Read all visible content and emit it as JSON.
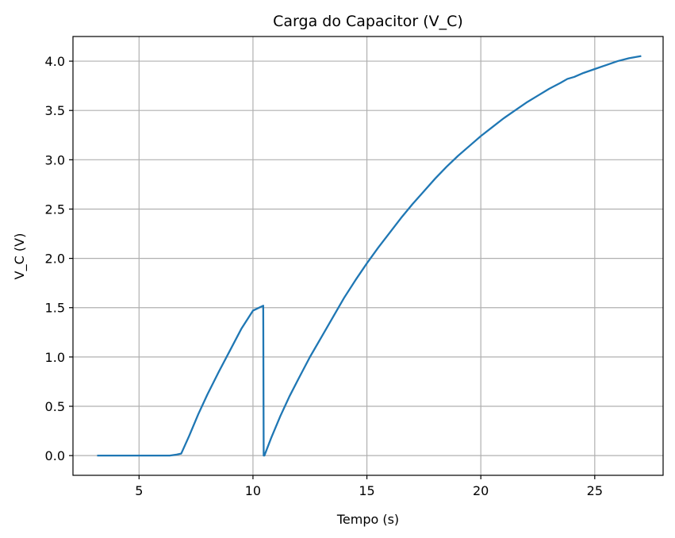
{
  "chart_data": {
    "type": "line",
    "title": "Carga do Capacitor (V_C)",
    "xlabel": "Tempo (s)",
    "ylabel": "V_C (V)",
    "xlim": [
      2.1,
      28.0
    ],
    "ylim": [
      -0.2,
      4.25
    ],
    "x_ticks": [
      5,
      10,
      15,
      20,
      25
    ],
    "x_tick_labels": [
      "5",
      "10",
      "15",
      "20",
      "25"
    ],
    "y_ticks": [
      0.0,
      0.5,
      1.0,
      1.5,
      2.0,
      2.5,
      3.0,
      3.5,
      4.0
    ],
    "y_tick_labels": [
      "0.0",
      "0.5",
      "1.0",
      "1.5",
      "2.0",
      "2.5",
      "3.0",
      "3.5",
      "4.0"
    ],
    "grid": true,
    "line_color": "#1f77b4",
    "series": [
      {
        "x": [
          3.2,
          4.0,
          5.0,
          6.0,
          6.35,
          6.65,
          6.85,
          7.2,
          7.6,
          8.0,
          8.5,
          9.0,
          9.5,
          10.0,
          10.45,
          10.47,
          10.5,
          10.8,
          11.2,
          11.6,
          12.0,
          12.5,
          13.0,
          13.5,
          14.0,
          14.5,
          15.0,
          15.5,
          16.0,
          16.5,
          17.0,
          17.5,
          18.0,
          18.5,
          19.0,
          19.5,
          20.0,
          20.5,
          21.0,
          21.5,
          22.0,
          22.5,
          23.0,
          23.5,
          23.8,
          24.1,
          24.5,
          25.0,
          25.5,
          26.0,
          26.5,
          27.0
        ],
        "y": [
          0.0,
          0.0,
          0.0,
          0.0,
          0.0,
          0.01,
          0.02,
          0.2,
          0.42,
          0.62,
          0.85,
          1.07,
          1.29,
          1.47,
          1.52,
          0.0,
          0.0,
          0.18,
          0.4,
          0.6,
          0.78,
          1.0,
          1.2,
          1.4,
          1.6,
          1.78,
          1.95,
          2.11,
          2.26,
          2.41,
          2.55,
          2.68,
          2.81,
          2.93,
          3.04,
          3.14,
          3.24,
          3.33,
          3.42,
          3.5,
          3.58,
          3.65,
          3.72,
          3.78,
          3.82,
          3.84,
          3.88,
          3.92,
          3.96,
          4.0,
          4.03,
          4.05
        ]
      }
    ]
  }
}
